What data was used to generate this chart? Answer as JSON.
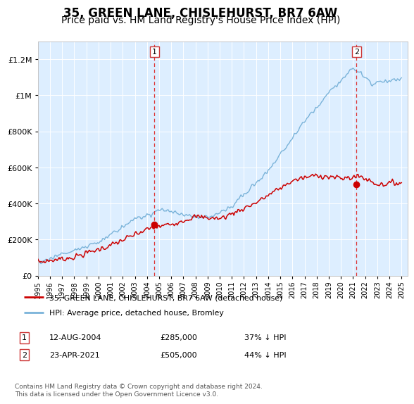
{
  "title": "35, GREEN LANE, CHISLEHURST, BR7 6AW",
  "subtitle": "Price paid vs. HM Land Registry's House Price Index (HPI)",
  "ylim": [
    0,
    1300000
  ],
  "yticks": [
    0,
    200000,
    400000,
    600000,
    800000,
    1000000,
    1200000
  ],
  "ytick_labels": [
    "£0",
    "£200K",
    "£400K",
    "£600K",
    "£800K",
    "£1M",
    "£1.2M"
  ],
  "background_color": "#ddeeff",
  "hpi_color": "#7ab3d9",
  "price_color": "#cc0000",
  "sale1_price": 285000,
  "sale2_price": 505000,
  "sale1_year": 2004.62,
  "sale2_year": 2021.29,
  "legend_label1": "35, GREEN LANE, CHISLEHURST, BR7 6AW (detached house)",
  "legend_label2": "HPI: Average price, detached house, Bromley",
  "footer": "Contains HM Land Registry data © Crown copyright and database right 2024.\nThis data is licensed under the Open Government Licence v3.0.",
  "title_fontsize": 12,
  "subtitle_fontsize": 10
}
